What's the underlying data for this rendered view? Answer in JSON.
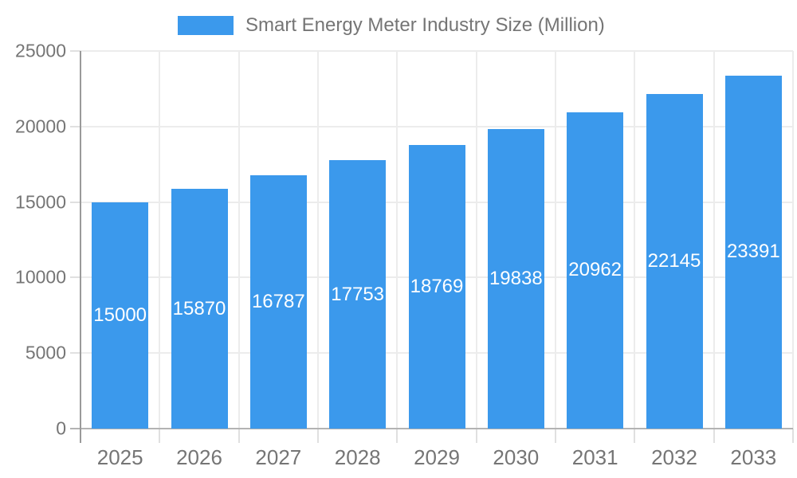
{
  "legend": {
    "label": "Smart Energy Meter Industry Size (Million)"
  },
  "colors": {
    "bar": "#3B99EC",
    "grid": "#ececec",
    "tick": "#e0e0e0",
    "axis_y": "#9a9a9a",
    "axis_x": "#b3b3b3",
    "text": "#757575",
    "value_text": "#ffffff",
    "background": "#ffffff"
  },
  "chart_data": {
    "type": "bar",
    "title": "Smart Energy Meter Industry Size (Million)",
    "categories": [
      "2025",
      "2026",
      "2027",
      "2028",
      "2029",
      "2030",
      "2031",
      "2032",
      "2033"
    ],
    "values": [
      15000,
      15870,
      16787,
      17753,
      18769,
      19838,
      20962,
      22145,
      23391
    ],
    "xlabel": "",
    "ylabel": "",
    "ylim": [
      0,
      25000
    ],
    "yticks": [
      0,
      5000,
      10000,
      15000,
      20000,
      25000
    ],
    "legend_position": "top-center",
    "grid": true,
    "value_labels": "inside-middle"
  }
}
